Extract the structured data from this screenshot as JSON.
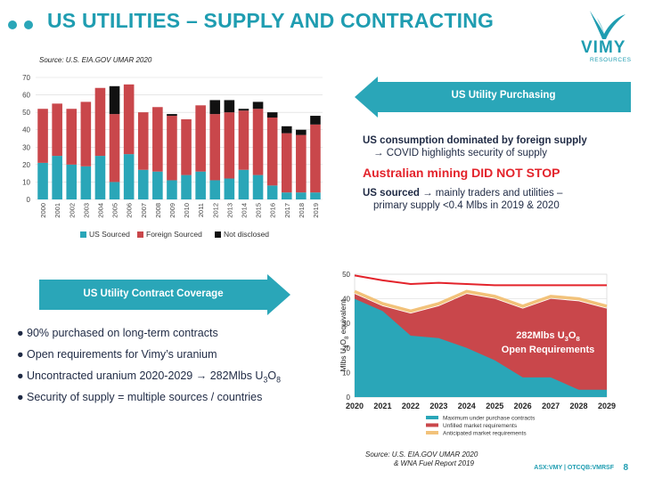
{
  "slide": {
    "title": "US UTILITIES – SUPPLY AND CONTRACTING",
    "page_number": "8",
    "footer": "ASX:VMY  |  OTCQB:VMRSF",
    "logo": {
      "name": "VIMY",
      "sub": "RESOURCES",
      "color": "#1f9db1"
    }
  },
  "left_chart": {
    "source": "Source:  U.S. EIA.GOV UMAR 2020",
    "chart_data": {
      "type": "bar",
      "stacked": true,
      "categories": [
        "2000",
        "2001",
        "2002",
        "2003",
        "2004",
        "2005",
        "2006",
        "2007",
        "2008",
        "2009",
        "2010",
        "2011",
        "2012",
        "2013",
        "2014",
        "2015",
        "2016",
        "2017",
        "2018",
        "2019"
      ],
      "series": [
        {
          "name": "US Sourced",
          "color": "#2aa6b8",
          "values": [
            21,
            25,
            20,
            19,
            25,
            10,
            26,
            17,
            16,
            11,
            14,
            16,
            11,
            12,
            17,
            14,
            8,
            4,
            4,
            4
          ]
        },
        {
          "name": "Foreign Sourced",
          "color": "#c9474b",
          "values": [
            31,
            30,
            32,
            37,
            39,
            39,
            40,
            33,
            37,
            37,
            32,
            38,
            38,
            38,
            34,
            38,
            39,
            34,
            33,
            39
          ]
        },
        {
          "name": "Not disclosed",
          "color": "#111111",
          "values": [
            0,
            0,
            0,
            0,
            0,
            16,
            0,
            0,
            0,
            1,
            0,
            0,
            8,
            7,
            1,
            4,
            3,
            4,
            3,
            5
          ]
        }
      ],
      "ylim": [
        0,
        70
      ],
      "yticks": [
        "0",
        "10",
        "20",
        "30",
        "40",
        "50",
        "60",
        "70"
      ],
      "legend_position": "bottom"
    }
  },
  "purchasing": {
    "banner": "US Utility Purchasing",
    "line1": "US consumption dominated by foreign supply",
    "line2": "→ COVID highlights security of supply",
    "red_heading": "Australian mining DID NOT STOP",
    "line3_bold": "US sourced",
    "line3_rest": " → mainly traders and utilities –",
    "line4": "primary supply <0.4 Mlbs in 2019 & 2020"
  },
  "contract": {
    "banner": "US Utility Contract Coverage",
    "bullets": [
      "● 90% purchased on long-term contracts",
      "● Open requirements for Vimy’s uranium",
      "● Uncontracted uranium 2020-2029 → 282Mlbs U3O8",
      "● Security of supply = multiple sources / countries"
    ]
  },
  "right_chart": {
    "source_line1": "Source:  U.S. EIA.GOV UMAR 2020",
    "source_line2": "& WNA Fuel Report 2019",
    "annotation_line1": "282Mlbs U3O8",
    "annotation_line2": "Open Requirements",
    "chart_data": {
      "type": "area",
      "x": [
        "2020",
        "2021",
        "2022",
        "2023",
        "2024",
        "2025",
        "2026",
        "2027",
        "2028",
        "2029"
      ],
      "ylabel": "Mlbs U3O8 equivalent",
      "ylim": [
        0,
        50
      ],
      "yticks": [
        "0",
        "10",
        "20",
        "30",
        "40",
        "50"
      ],
      "series": [
        {
          "name": "Maximum under purchase contracts",
          "color": "#2aa6b8",
          "values": [
            40,
            35,
            25,
            24,
            20,
            15,
            8,
            8,
            3,
            3
          ]
        },
        {
          "name": "Unfilled market requirements",
          "color": "#c9474b",
          "values": [
            42,
            37,
            34,
            37,
            42,
            40,
            36,
            40,
            39,
            36
          ]
        },
        {
          "name": "Anticipated market requirements",
          "color": "#f2c27a",
          "values": [
            43,
            38,
            35,
            38,
            43,
            41,
            37,
            41,
            40,
            37
          ]
        },
        {
          "name": "",
          "color": "#e3232b",
          "values": [
            49.5,
            47.5,
            46,
            46.5,
            46,
            45.5,
            45.5,
            45.5,
            45.5,
            45.5
          ]
        }
      ],
      "legend_position": "bottom"
    }
  }
}
